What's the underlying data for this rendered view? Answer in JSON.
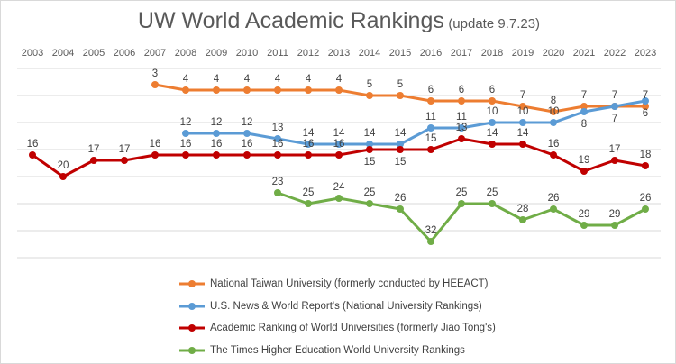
{
  "chart_data": {
    "type": "line",
    "title": "UW World Academic Rankings",
    "subtitle": "(update 9.7.23)",
    "x": [
      2003,
      2004,
      2005,
      2006,
      2007,
      2008,
      2009,
      2010,
      2011,
      2012,
      2013,
      2014,
      2015,
      2016,
      2017,
      2018,
      2019,
      2020,
      2021,
      2022,
      2023
    ],
    "ylim": [
      35,
      0
    ],
    "y_inverted": true,
    "y_axis_labels_shown": false,
    "x_axis_position": "top",
    "grid": true,
    "legend_placement": "bottom",
    "series": [
      {
        "name": "National Taiwan University (formerly conducted by HEEACT)",
        "color": "#ED7D31",
        "values": [
          null,
          null,
          null,
          null,
          3,
          4,
          4,
          4,
          4,
          4,
          4,
          5,
          5,
          6,
          6,
          6,
          7,
          8,
          7,
          7,
          7
        ]
      },
      {
        "name": "U.S. News & World Report's (National University Rankings)",
        "color": "#5B9BD5",
        "values": [
          null,
          null,
          null,
          null,
          null,
          12,
          12,
          12,
          13,
          14,
          14,
          14,
          14,
          11,
          11,
          10,
          10,
          10,
          8,
          7,
          6
        ]
      },
      {
        "name": "Academic Ranking of World Universities (formerly Jiao Tong's)",
        "color": "#C00000",
        "values": [
          16,
          20,
          17,
          17,
          16,
          16,
          16,
          16,
          16,
          16,
          16,
          15,
          15,
          15,
          13,
          14,
          14,
          16,
          19,
          17,
          18
        ]
      },
      {
        "name": "The Times Higher Education World University Rankings",
        "color": "#70AD47",
        "values": [
          null,
          null,
          null,
          null,
          null,
          null,
          null,
          null,
          23,
          25,
          24,
          25,
          26,
          32,
          25,
          25,
          28,
          26,
          29,
          29,
          26
        ]
      }
    ]
  }
}
